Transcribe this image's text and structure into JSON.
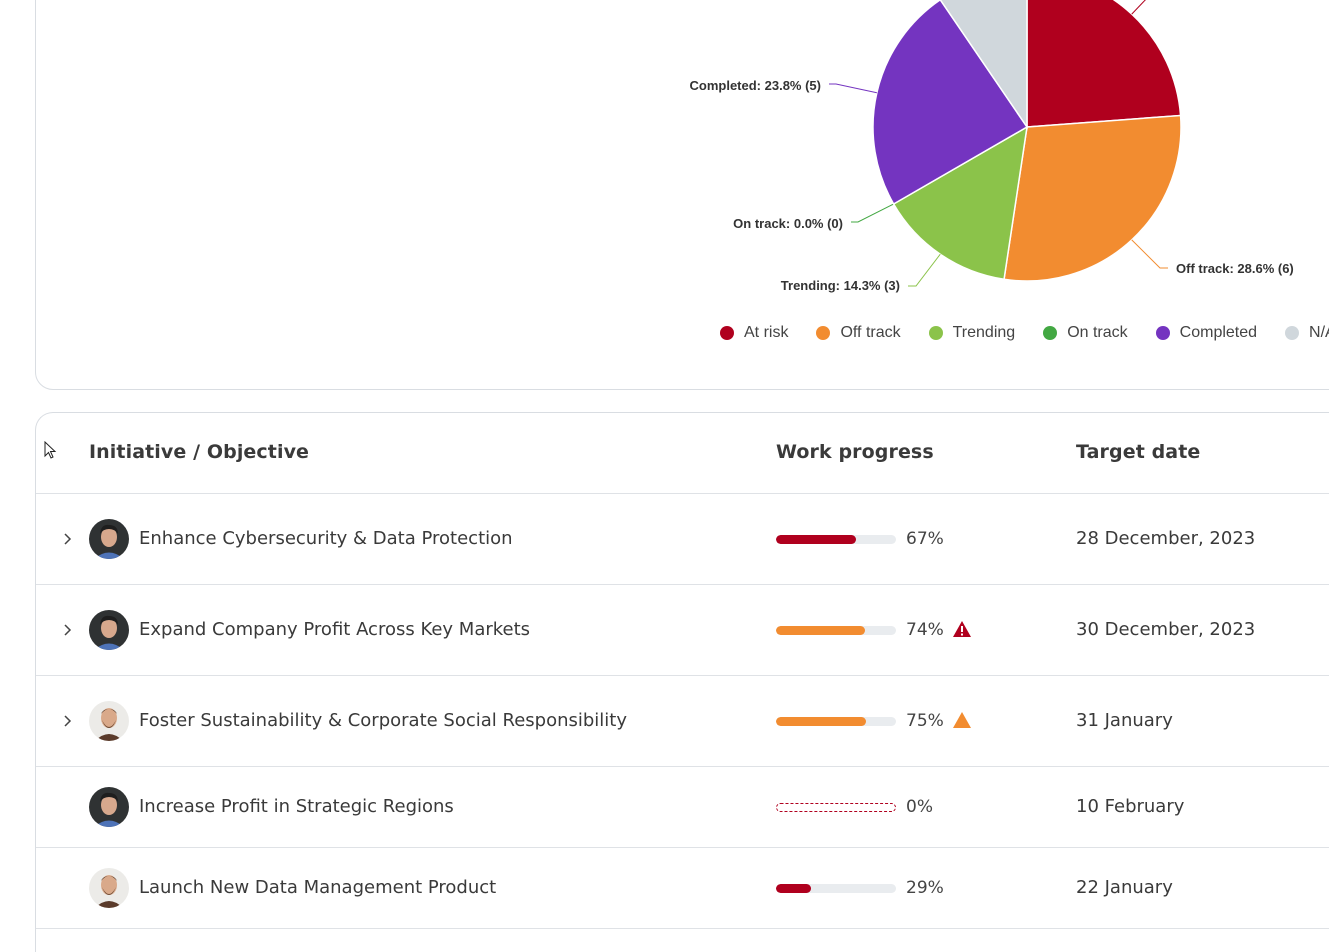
{
  "chart_data": {
    "type": "pie",
    "slices": [
      {
        "name": "At risk",
        "value": 5,
        "percent": 23.8,
        "color": "#b0001e"
      },
      {
        "name": "Off track",
        "value": 6,
        "percent": 28.6,
        "color": "#f28c30",
        "label": "Off track: 28.6% (6)"
      },
      {
        "name": "Trending",
        "value": 3,
        "percent": 14.3,
        "color": "#8bc34a",
        "label": "Trending: 14.3% (3)"
      },
      {
        "name": "On track",
        "value": 0,
        "percent": 0.0,
        "color": "#43a843",
        "label": "On track: 0.0% (0)"
      },
      {
        "name": "Completed",
        "value": 5,
        "percent": 23.8,
        "color": "#7434c0",
        "label": "Completed: 23.8% (5)"
      },
      {
        "name": "N/A",
        "value": 2,
        "percent": 9.5,
        "color": "#d0d7dc"
      }
    ],
    "legend": [
      "At risk",
      "Off track",
      "Trending",
      "On track",
      "Completed",
      "N/A"
    ],
    "legend_placement": "bottom"
  },
  "table": {
    "headers": {
      "initiative": "Initiative / Objective",
      "progress": "Work progress",
      "target": "Target date"
    },
    "rows": [
      {
        "title": "Enhance Cybersecurity & Data Protection",
        "progress": 67,
        "progress_label": "67%",
        "status_color": "#b0001e",
        "warning": "none",
        "date": "28 December, 2023",
        "expandable": true,
        "avatar": "man-dark-hair"
      },
      {
        "title": "Expand Company Profit Across Key Markets",
        "progress": 74,
        "progress_label": "74%",
        "status_color": "#f28c30",
        "warning": "red",
        "date": "30 December, 2023",
        "expandable": true,
        "avatar": "man-dark-hair"
      },
      {
        "title": "Foster Sustainability & Corporate Social Responsibility",
        "progress": 75,
        "progress_label": "75%",
        "status_color": "#f28c30",
        "warning": "orange",
        "date": "31 January",
        "expandable": true,
        "avatar": "man-beard"
      },
      {
        "title": "Increase Profit in Strategic Regions",
        "progress": 0,
        "progress_label": "0%",
        "status_color": "#b0001e",
        "warning": "none",
        "date": "10 February",
        "expandable": false,
        "avatar": "man-dark-hair"
      },
      {
        "title": "Launch New Data Management Product",
        "progress": 29,
        "progress_label": "29%",
        "status_color": "#b0001e",
        "warning": "none",
        "date": "22 January",
        "expandable": false,
        "avatar": "man-beard"
      }
    ]
  },
  "colors": {
    "warning_red": "#b0001e",
    "warning_orange": "#f28c30"
  }
}
